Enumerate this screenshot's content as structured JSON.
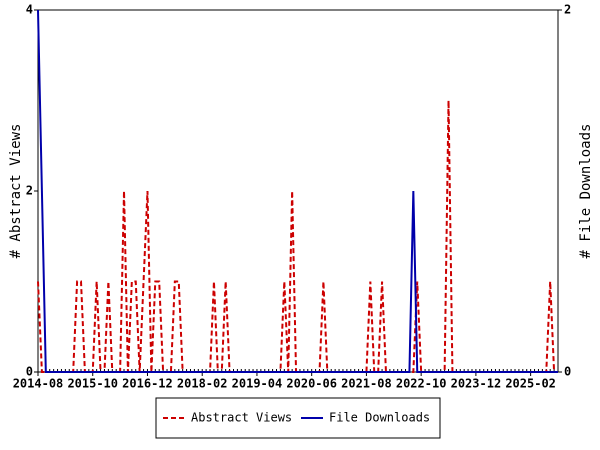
{
  "chart_data": {
    "type": "line",
    "x": [
      "2014-08",
      "2014-09",
      "2014-10",
      "2014-11",
      "2014-12",
      "2015-01",
      "2015-02",
      "2015-03",
      "2015-04",
      "2015-05",
      "2015-06",
      "2015-07",
      "2015-08",
      "2015-09",
      "2015-10",
      "2015-11",
      "2015-12",
      "2016-01",
      "2016-02",
      "2016-03",
      "2016-04",
      "2016-05",
      "2016-06",
      "2016-07",
      "2016-08",
      "2016-09",
      "2016-10",
      "2016-11",
      "2016-12",
      "2017-01",
      "2017-02",
      "2017-03",
      "2017-04",
      "2017-05",
      "2017-06",
      "2017-07",
      "2017-08",
      "2017-09",
      "2017-10",
      "2017-11",
      "2017-12",
      "2018-01",
      "2018-02",
      "2018-03",
      "2018-04",
      "2018-05",
      "2018-06",
      "2018-07",
      "2018-08",
      "2018-09",
      "2018-10",
      "2018-11",
      "2018-12",
      "2019-01",
      "2019-02",
      "2019-03",
      "2019-04",
      "2019-05",
      "2019-06",
      "2019-07",
      "2019-08",
      "2019-09",
      "2019-10",
      "2019-11",
      "2019-12",
      "2020-01",
      "2020-02",
      "2020-03",
      "2020-04",
      "2020-05",
      "2020-06",
      "2020-07",
      "2020-08",
      "2020-09",
      "2020-10",
      "2020-11",
      "2020-12",
      "2021-01",
      "2021-02",
      "2021-03",
      "2021-04",
      "2021-05",
      "2021-06",
      "2021-07",
      "2021-08",
      "2021-09",
      "2021-10",
      "2021-11",
      "2021-12",
      "2022-01",
      "2022-02",
      "2022-03",
      "2022-04",
      "2022-05",
      "2022-06",
      "2022-07",
      "2022-08",
      "2022-09",
      "2022-10",
      "2022-11",
      "2022-12",
      "2023-01",
      "2023-02",
      "2023-03",
      "2023-04",
      "2023-05",
      "2023-06",
      "2023-07",
      "2023-08",
      "2023-09",
      "2023-10",
      "2023-11",
      "2023-12",
      "2024-01",
      "2024-02",
      "2024-03",
      "2024-04",
      "2024-05",
      "2024-06",
      "2024-07",
      "2024-08",
      "2024-09",
      "2024-10",
      "2024-11",
      "2024-12",
      "2025-01",
      "2025-02",
      "2025-03",
      "2025-04",
      "2025-05",
      "2025-06",
      "2025-07",
      "2025-08",
      "2025-09"
    ],
    "xticks": [
      "2014-08",
      "2015-10",
      "2016-12",
      "2018-02",
      "2019-04",
      "2020-06",
      "2021-08",
      "2022-10",
      "2023-12",
      "2025-02"
    ],
    "ylabel": "# Abstract Views",
    "y2label": "# File Downloads",
    "ylim": [
      0,
      4
    ],
    "yticks": [
      0,
      2,
      4
    ],
    "y2lim": [
      0,
      2
    ],
    "y2ticks": [
      0,
      2
    ],
    "series": [
      {
        "name": "Abstract Views",
        "color": "#cc0000",
        "dashed": true,
        "values": [
          1,
          0,
          0,
          0,
          0,
          0,
          0,
          0,
          0,
          0,
          1,
          1,
          0,
          0,
          0,
          1,
          0,
          0,
          1,
          0,
          0,
          0,
          2,
          0,
          1,
          1,
          0,
          1,
          2,
          0,
          1,
          1,
          0,
          0,
          0,
          1,
          1,
          0,
          0,
          0,
          0,
          0,
          0,
          0,
          0,
          1,
          0,
          0,
          1,
          0,
          0,
          0,
          0,
          0,
          0,
          0,
          0,
          0,
          0,
          0,
          0,
          0,
          0,
          1,
          0,
          2,
          0,
          0,
          0,
          0,
          0,
          0,
          0,
          1,
          0,
          0,
          0,
          0,
          0,
          0,
          0,
          0,
          0,
          0,
          0,
          1,
          0,
          0,
          1,
          0,
          0,
          0,
          0,
          0,
          0,
          0,
          0,
          1,
          0,
          0,
          0,
          0,
          0,
          0,
          0,
          3,
          0,
          0,
          0,
          0,
          0,
          0,
          0,
          0,
          0,
          0,
          0,
          0,
          0,
          0,
          0,
          0,
          0,
          0,
          0,
          0,
          0,
          0,
          0,
          0,
          0,
          1,
          0,
          0
        ]
      },
      {
        "name": "File Downloads",
        "color": "#0000aa",
        "axis": "y2",
        "values": [
          2,
          1,
          0,
          0,
          0,
          0,
          0,
          0,
          0,
          0,
          0,
          0,
          0,
          0,
          0,
          0,
          0,
          0,
          0,
          0,
          0,
          0,
          0,
          0,
          0,
          0,
          0,
          0,
          0,
          0,
          0,
          0,
          0,
          0,
          0,
          0,
          0,
          0,
          0,
          0,
          0,
          0,
          0,
          0,
          0,
          0,
          0,
          0,
          0,
          0,
          0,
          0,
          0,
          0,
          0,
          0,
          0,
          0,
          0,
          0,
          0,
          0,
          0,
          0,
          0,
          0,
          0,
          0,
          0,
          0,
          0,
          0,
          0,
          0,
          0,
          0,
          0,
          0,
          0,
          0,
          0,
          0,
          0,
          0,
          0,
          0,
          0,
          0,
          0,
          0,
          0,
          0,
          0,
          0,
          0,
          0,
          1,
          0,
          0,
          0,
          0,
          0,
          0,
          0,
          0,
          0,
          0,
          0,
          0,
          0,
          0,
          0,
          0,
          0,
          0,
          0,
          0,
          0,
          0,
          0,
          0,
          0,
          0,
          0,
          0,
          0,
          0,
          0,
          0,
          0,
          0,
          0,
          0,
          0
        ]
      }
    ]
  }
}
